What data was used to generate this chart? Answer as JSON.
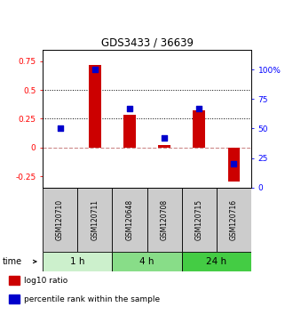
{
  "title": "GDS3433 / 36639",
  "samples": [
    "GSM120710",
    "GSM120711",
    "GSM120648",
    "GSM120708",
    "GSM120715",
    "GSM120716"
  ],
  "log10_ratio": [
    0.0,
    0.72,
    0.285,
    0.02,
    0.32,
    -0.3
  ],
  "percentile_rank": [
    50,
    100,
    67,
    42,
    67,
    20
  ],
  "groups": [
    {
      "label": "1 h",
      "indices": [
        0,
        1
      ],
      "color": "#ccf0cc"
    },
    {
      "label": "4 h",
      "indices": [
        2,
        3
      ],
      "color": "#88dd88"
    },
    {
      "label": "24 h",
      "indices": [
        4,
        5
      ],
      "color": "#44cc44"
    }
  ],
  "bar_color": "#cc0000",
  "dot_color": "#0000cc",
  "ylim_left": [
    -0.35,
    0.85
  ],
  "ylim_right": [
    0,
    116.67
  ],
  "yticks_left": [
    -0.25,
    0.0,
    0.25,
    0.5,
    0.75
  ],
  "ytick_labels_left": [
    "-0.25",
    "0",
    "0.25",
    "0.5",
    "0.75"
  ],
  "yticks_right": [
    0,
    25,
    50,
    75,
    100
  ],
  "ytick_labels_right": [
    "0",
    "25",
    "50",
    "75",
    "100%"
  ],
  "hlines": [
    0.5,
    0.25
  ],
  "hline_zero_color": "#cc8888",
  "hline_dotted_color": "#000000",
  "bar_width": 0.35,
  "dot_size": 18,
  "legend_items": [
    {
      "label": "log10 ratio",
      "color": "#cc0000"
    },
    {
      "label": "percentile rank within the sample",
      "color": "#0000cc"
    }
  ],
  "xlabel_time": "time",
  "bg_sample": "#cccccc"
}
